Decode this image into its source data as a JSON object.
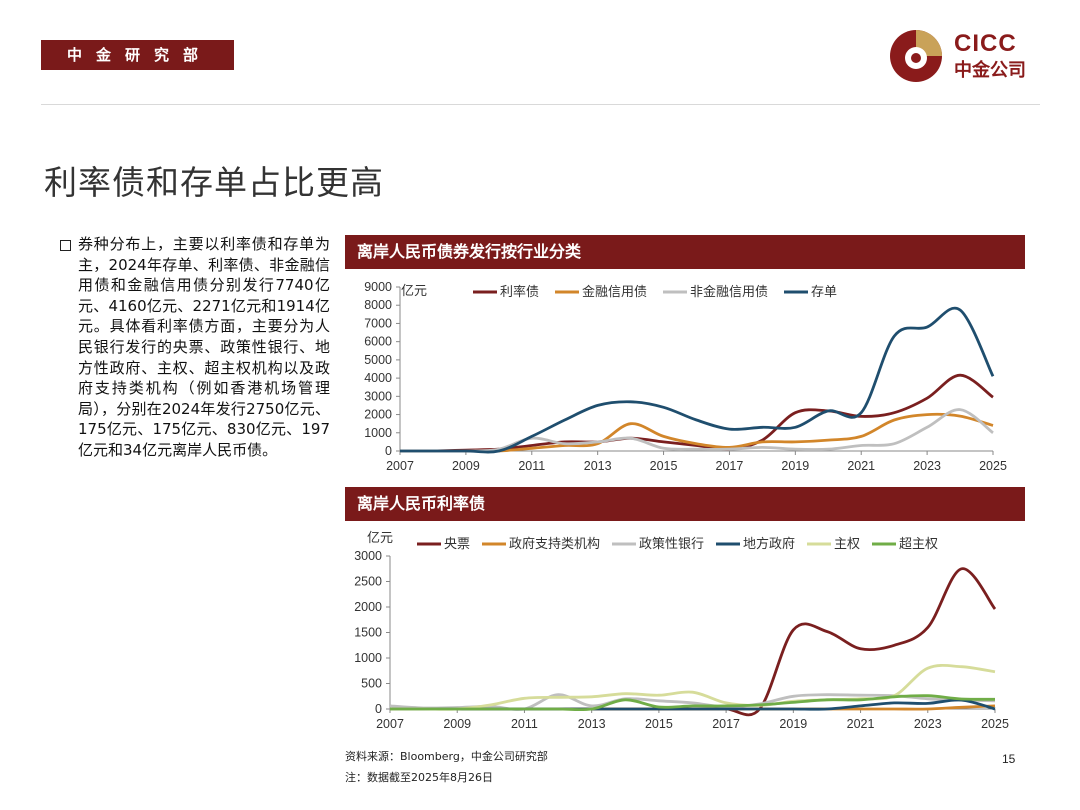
{
  "header": {
    "dept": "中金研究部",
    "logo_en": "CICC",
    "logo_cn": "中金公司"
  },
  "title": "利率债和存单占比更高",
  "body_text": "券种分布上，主要以利率债和存单为主，2024年存单、利率债、非金融信用债和金融信用债分别发行7740亿元、4160亿元、2271亿元和1914亿元。具体看利率债方面，主要分为人民银行发行的央票、政策性银行、地方性政府、主权、超主权机构以及政府支持类机构（例如香港机场管理局），分别在2024年发行2750亿元、175亿元、175亿元、830亿元、197亿元和34亿元离岸人民币债。",
  "footer": {
    "source": "资料来源：Bloomberg，中金公司研究部",
    "note": "注：数据截至2025年8月26日",
    "page": "15"
  },
  "chart_data": [
    {
      "title": "离岸人民币债券发行按行业分类",
      "type": "line",
      "unit": "亿元",
      "x": [
        2007,
        2008,
        2009,
        2010,
        2011,
        2012,
        2013,
        2014,
        2015,
        2016,
        2017,
        2018,
        2019,
        2020,
        2021,
        2022,
        2023,
        2024,
        2025
      ],
      "xticks": [
        2007,
        2009,
        2011,
        2013,
        2015,
        2017,
        2019,
        2021,
        2023,
        2025
      ],
      "ylim": [
        0,
        9000
      ],
      "yticks": [
        0,
        1000,
        2000,
        3000,
        4000,
        5000,
        6000,
        7000,
        8000,
        9000
      ],
      "series": [
        {
          "name": "利率债",
          "color": "#7a1f1f",
          "values": [
            0,
            0,
            50,
            100,
            300,
            500,
            500,
            700,
            500,
            300,
            100,
            600,
            2100,
            2200,
            1900,
            2100,
            2900,
            4160,
            2950
          ]
        },
        {
          "name": "金融信用债",
          "color": "#d2862a",
          "values": [
            0,
            0,
            0,
            0,
            150,
            300,
            400,
            1500,
            800,
            400,
            200,
            500,
            500,
            600,
            800,
            1700,
            2000,
            1914,
            1400
          ]
        },
        {
          "name": "非金融信用债",
          "color": "#bfbfbf",
          "values": [
            0,
            0,
            0,
            100,
            700,
            400,
            500,
            700,
            150,
            100,
            100,
            200,
            100,
            100,
            300,
            400,
            1300,
            2271,
            1000
          ]
        },
        {
          "name": "存单",
          "color": "#1f4e6e",
          "values": [
            0,
            0,
            0,
            0,
            800,
            1700,
            2500,
            2700,
            2400,
            1700,
            1200,
            1300,
            1300,
            2200,
            2100,
            6300,
            6800,
            7740,
            4100
          ]
        }
      ]
    },
    {
      "title": "离岸人民币利率债",
      "type": "line",
      "unit": "亿元",
      "x": [
        2007,
        2008,
        2009,
        2010,
        2011,
        2012,
        2013,
        2014,
        2015,
        2016,
        2017,
        2018,
        2019,
        2020,
        2021,
        2022,
        2023,
        2024,
        2025
      ],
      "xticks": [
        2007,
        2009,
        2011,
        2013,
        2015,
        2017,
        2019,
        2021,
        2023,
        2025
      ],
      "ylim": [
        0,
        3000
      ],
      "yticks": [
        0,
        500,
        1000,
        1500,
        2000,
        2500,
        3000
      ],
      "series": [
        {
          "name": "央票",
          "color": "#7a1f1f",
          "values": [
            0,
            0,
            0,
            0,
            0,
            0,
            0,
            0,
            0,
            0,
            0,
            0,
            1550,
            1520,
            1180,
            1250,
            1600,
            2750,
            1960
          ]
        },
        {
          "name": "政府支持类机构",
          "color": "#d2862a",
          "values": [
            0,
            0,
            0,
            0,
            0,
            0,
            0,
            0,
            0,
            0,
            0,
            0,
            0,
            0,
            0,
            0,
            0,
            34,
            60
          ]
        },
        {
          "name": "政策性银行",
          "color": "#bfbfbf",
          "values": [
            60,
            20,
            30,
            50,
            0,
            280,
            60,
            200,
            160,
            120,
            40,
            100,
            250,
            280,
            270,
            260,
            200,
            175,
            160
          ]
        },
        {
          "name": "地方政府",
          "color": "#1f4e6e",
          "values": [
            0,
            0,
            0,
            0,
            0,
            0,
            0,
            0,
            0,
            0,
            0,
            0,
            0,
            0,
            60,
            120,
            110,
            175,
            0
          ]
        },
        {
          "name": "主权",
          "color": "#d6dc9a",
          "values": [
            0,
            0,
            0,
            80,
            210,
            230,
            240,
            300,
            270,
            330,
            120,
            70,
            150,
            180,
            200,
            260,
            800,
            830,
            730
          ]
        },
        {
          "name": "超主权",
          "color": "#70ad47",
          "values": [
            0,
            0,
            0,
            0,
            0,
            0,
            0,
            180,
            40,
            60,
            60,
            80,
            130,
            180,
            180,
            240,
            260,
            197,
            190
          ]
        }
      ]
    }
  ]
}
